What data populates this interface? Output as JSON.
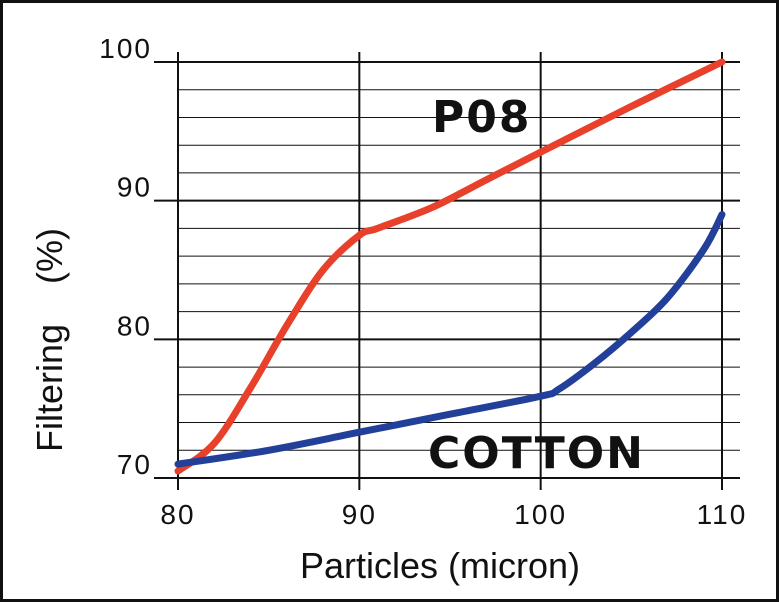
{
  "chart_data": {
    "type": "line",
    "xlabel": "Particles (micron)",
    "ylabel": "Filtering    (%)",
    "xlim": [
      80,
      110
    ],
    "ylim": [
      70,
      100
    ],
    "x_ticks": [
      80,
      90,
      100,
      110
    ],
    "y_ticks": [
      70,
      80,
      90,
      100
    ],
    "minor_y_step": 2,
    "grid": true,
    "series": [
      {
        "name": "P08",
        "color": "#e8402a",
        "points": [
          [
            80,
            70.5
          ],
          [
            82,
            72.5
          ],
          [
            84,
            76.5
          ],
          [
            86,
            81
          ],
          [
            88,
            85
          ],
          [
            90,
            87.5
          ],
          [
            91,
            88
          ],
          [
            94,
            89.5
          ],
          [
            97,
            91.5
          ],
          [
            100,
            93.5
          ],
          [
            105,
            96.8
          ],
          [
            110,
            100
          ]
        ]
      },
      {
        "name": "COTTON",
        "color": "#22409a",
        "points": [
          [
            80,
            71
          ],
          [
            85,
            72
          ],
          [
            90,
            73.3
          ],
          [
            95,
            74.6
          ],
          [
            100,
            75.9
          ],
          [
            101,
            76.4
          ],
          [
            103,
            78.3
          ],
          [
            105,
            80.5
          ],
          [
            107,
            83
          ],
          [
            109,
            86.5
          ],
          [
            110,
            89
          ]
        ]
      }
    ]
  }
}
